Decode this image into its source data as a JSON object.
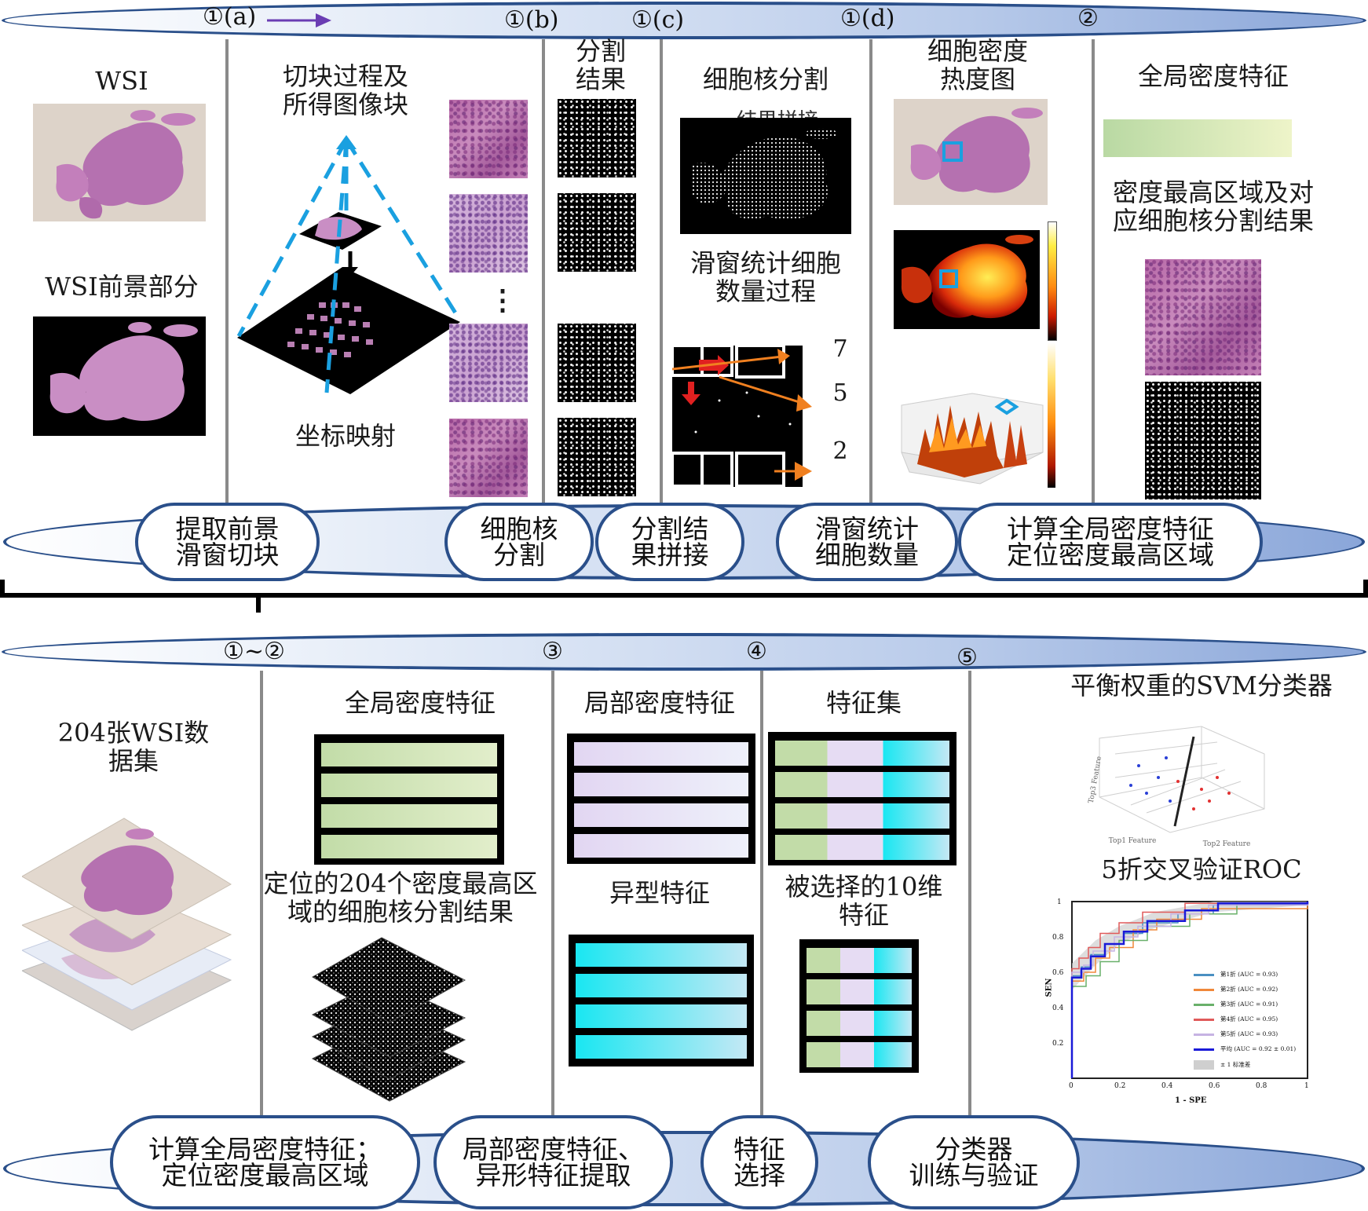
{
  "top": {
    "step_labels": [
      "①(a)",
      "①(b)",
      "①(c)",
      "①(d)",
      "②"
    ],
    "wsi_title": "WSI",
    "wsi_fg_title": "WSI前景部分",
    "tiling_title": "切块过程及\n所得图像块",
    "coord_mapping": "坐标映射",
    "vdots": "⋮",
    "seg_result_title": "分割\n结果",
    "nuclei_seg_title": "细胞核分割",
    "nuclei_seg_subtitle": "结果拼接",
    "sliding_title": "滑窗统计细胞\n数量过程",
    "sliding_numbers": [
      "7",
      "5",
      "2"
    ],
    "heatmap_title": "细胞密度\n热度图",
    "global_title": "全局密度特征",
    "highest_region_title": "密度最高区域及对\n应细胞核分割结果",
    "pills": [
      "提取前景\n滑窗切块",
      "细胞核\n分割",
      "分割结\n果拼接",
      "滑窗统计\n细胞数量",
      "计算全局密度特征\n定位密度最高区域"
    ]
  },
  "bottom": {
    "step_labels": [
      "①~②",
      "③",
      "④",
      "⑤"
    ],
    "dataset_title": "204张WSI数\n据集",
    "global_feat_title": "全局密度特征",
    "located_title": "定位的204个密度最高区\n域的细胞核分割结果",
    "local_feat_title": "局部密度特征",
    "atypia_title": "异型特征",
    "feature_set_title": "特征集",
    "selected_title": "被选择的10维\n特征",
    "svm_title": "平衡权重的SVM分类器",
    "roc_title": "5折交叉验证ROC",
    "pills": [
      "计算全局密度特征；\n定位密度最高区域",
      "局部密度特征、\n异形特征提取",
      "特征\n选择",
      "分类器\n训练与验证"
    ]
  },
  "svm": {
    "xlabel": "Top1 Feature",
    "ylabel": "Top2 Feature",
    "zlabel": "Top3 Feature"
  },
  "roc": {
    "xlabel": "1 - SPE",
    "ylabel": "SEN",
    "xticks": [
      "0",
      "0.2",
      "0.4",
      "0.6",
      "0.8",
      "1"
    ],
    "yticks": [
      "1",
      "0.8",
      "0.6",
      "0.4",
      "0.2"
    ],
    "legend": [
      {
        "label": "第1折  (AUC = 0.93)",
        "color": "#4a90c2"
      },
      {
        "label": "第2折  (AUC = 0.92)",
        "color": "#f0883a"
      },
      {
        "label": "第3折  (AUC = 0.91)",
        "color": "#69b06a"
      },
      {
        "label": "第4折  (AUC = 0.95)",
        "color": "#e05a5a"
      },
      {
        "label": "第5折  (AUC = 0.93)",
        "color": "#c6b3e3"
      },
      {
        "label": "平均  (AUC = 0.92 ± 0.01)",
        "color": "#1a1ad8"
      },
      {
        "label": "± 1 标准差",
        "color": "#cfcfcf"
      }
    ]
  },
  "colors": {
    "band_border": "#2a4f8a",
    "accent_blue": "#1aa0e0",
    "global_green": "#c9dfb5",
    "local_lilac": "#e6dcf3",
    "atypia_cyan": "#18e6f0"
  }
}
